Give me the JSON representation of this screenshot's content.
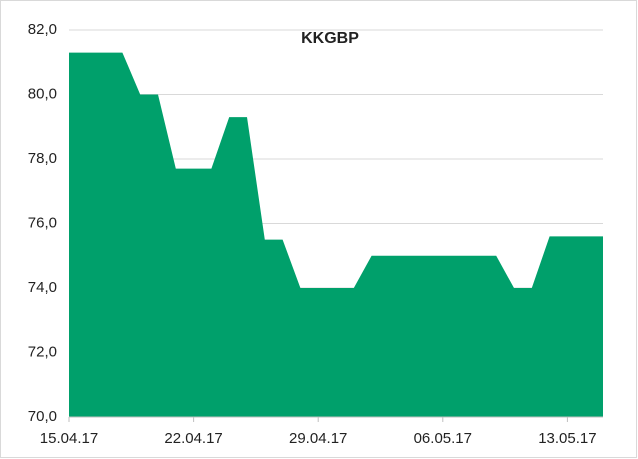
{
  "chart_data": {
    "type": "area",
    "title": "KKGBP",
    "x": [
      "15.04.17",
      "16.04.17",
      "17.04.17",
      "18.04.17",
      "19.04.17",
      "20.04.17",
      "21.04.17",
      "22.04.17",
      "23.04.17",
      "24.04.17",
      "25.04.17",
      "26.04.17",
      "27.04.17",
      "28.04.17",
      "29.04.17",
      "30.04.17",
      "01.05.17",
      "02.05.17",
      "03.05.17",
      "04.05.17",
      "05.05.17",
      "06.05.17",
      "07.05.17",
      "08.05.17",
      "09.05.17",
      "10.05.17",
      "11.05.17",
      "12.05.17",
      "13.05.17",
      "14.05.17",
      "15.05.17"
    ],
    "values": [
      81.3,
      81.3,
      81.3,
      81.3,
      80.0,
      80.0,
      77.7,
      77.7,
      77.7,
      79.3,
      79.3,
      75.5,
      75.5,
      74.0,
      74.0,
      74.0,
      74.0,
      75.0,
      75.0,
      75.0,
      75.0,
      75.0,
      75.0,
      75.0,
      75.0,
      74.0,
      74.0,
      75.6,
      75.6,
      75.6,
      75.6
    ],
    "color": "#00a06b",
    "xticks": [
      "15.04.17",
      "22.04.17",
      "29.04.17",
      "06.05.17",
      "13.05.17"
    ],
    "ylim": [
      70,
      82
    ],
    "yticks": [
      {
        "value": 70,
        "label": "70,0"
      },
      {
        "value": 72,
        "label": "72,0"
      },
      {
        "value": 74,
        "label": "74,0"
      },
      {
        "value": 76,
        "label": "76,0"
      },
      {
        "value": 78,
        "label": "78,0"
      },
      {
        "value": 80,
        "label": "80,0"
      },
      {
        "value": 82,
        "label": "82,0"
      }
    ],
    "grid": true
  }
}
